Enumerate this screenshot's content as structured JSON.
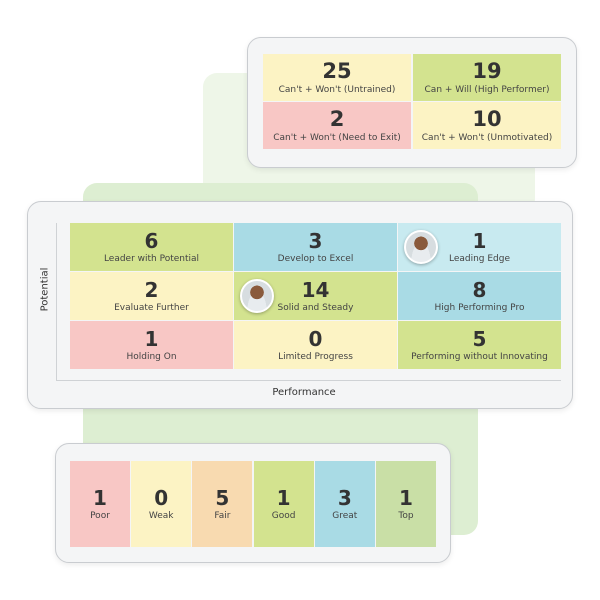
{
  "colors": {
    "yellow": "#fcf3c4",
    "green": "#d3e38f",
    "pink": "#f8c7c5",
    "blue": "#a9dbe5",
    "light_blue": "#c8eaf0",
    "peach": "#f8dab0",
    "sage": "#c9dfa6"
  },
  "quadrant": [
    {
      "value": "25",
      "label": "Can't + Won't (Untrained)",
      "color": "#fcf3c4"
    },
    {
      "value": "19",
      "label": "Can + Will (High Performer)",
      "color": "#d3e38f"
    },
    {
      "value": "2",
      "label": "Can't + Won't (Need to Exit)",
      "color": "#f8c7c5"
    },
    {
      "value": "10",
      "label": "Can't + Won't (Unmotivated)",
      "color": "#fcf3c4"
    }
  ],
  "nine_box": {
    "y_axis": "Potential",
    "x_axis": "Performance",
    "cells": [
      {
        "value": "6",
        "label": "Leader with Potential",
        "color": "#d3e38f"
      },
      {
        "value": "3",
        "label": "Develop to Excel",
        "color": "#a9dbe5"
      },
      {
        "value": "1",
        "label": "Leading Edge",
        "color": "#c8eaf0",
        "avatar": true
      },
      {
        "value": "2",
        "label": "Evaluate Further",
        "color": "#fcf3c4"
      },
      {
        "value": "14",
        "label": "Solid and Steady",
        "color": "#d3e38f",
        "avatar": true
      },
      {
        "value": "8",
        "label": "High Performing Pro",
        "color": "#a9dbe5"
      },
      {
        "value": "1",
        "label": "Holding On",
        "color": "#f8c7c5"
      },
      {
        "value": "0",
        "label": "Limited Progress",
        "color": "#fcf3c4"
      },
      {
        "value": "5",
        "label": "Performing without Innovating",
        "color": "#d3e38f"
      }
    ]
  },
  "rating": [
    {
      "value": "1",
      "label": "Poor",
      "color": "#f8c7c5"
    },
    {
      "value": "0",
      "label": "Weak",
      "color": "#fcf3c4"
    },
    {
      "value": "5",
      "label": "Fair",
      "color": "#f8dab0"
    },
    {
      "value": "1",
      "label": "Good",
      "color": "#d3e38f"
    },
    {
      "value": "3",
      "label": "Great",
      "color": "#a9dbe5"
    },
    {
      "value": "1",
      "label": "Top",
      "color": "#c9dfa6"
    }
  ]
}
